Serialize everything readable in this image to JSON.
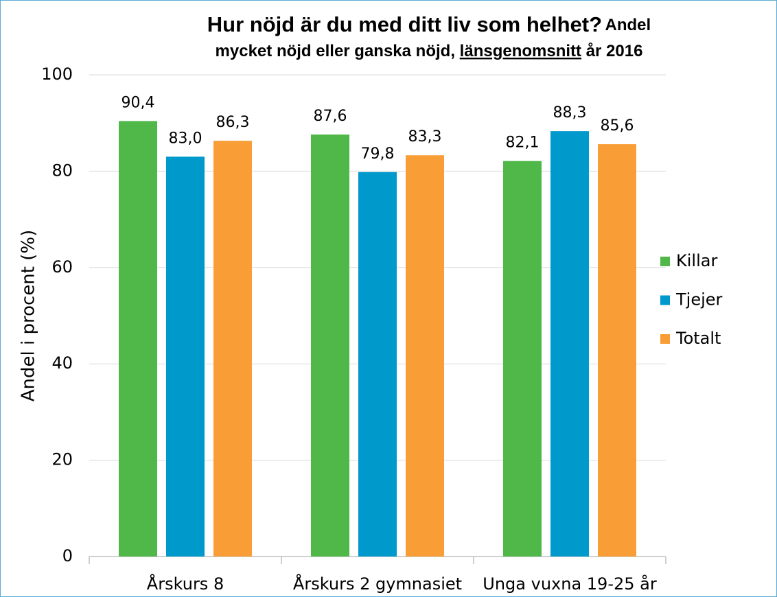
{
  "chart_data": {
    "type": "bar",
    "title": "Hur nöjd är du med ditt liv som helhet?",
    "subtitle": [
      "Andel",
      "mycket nöjd eller ganska nöjd,",
      "länsgenomsnitt",
      "år 2016"
    ],
    "y_label": "Andel i procent (%)",
    "categories": [
      "Årskurs 8",
      "Årskurs 2 gymnasiet",
      "Unga vuxna 19-25 år"
    ],
    "series": [
      {
        "name": "Killar",
        "color": "#50b848",
        "values": [
          90.4,
          87.6,
          82.1
        ],
        "value_labels": [
          "90,4",
          "87,6",
          "82,1"
        ]
      },
      {
        "name": "Tjejer",
        "color": "#0099cc",
        "values": [
          83.0,
          79.8,
          88.3
        ],
        "value_labels": [
          "83,0",
          "79,8",
          "88,3"
        ]
      },
      {
        "name": "Totalt",
        "color": "#f99d36",
        "values": [
          86.3,
          83.3,
          85.6
        ],
        "value_labels": [
          "86,3",
          "83,3",
          "85,6"
        ]
      }
    ],
    "ylim": [
      0,
      100
    ],
    "yticks": [
      0,
      20,
      40,
      60,
      80,
      100
    ],
    "grid": true,
    "legend": "right"
  }
}
